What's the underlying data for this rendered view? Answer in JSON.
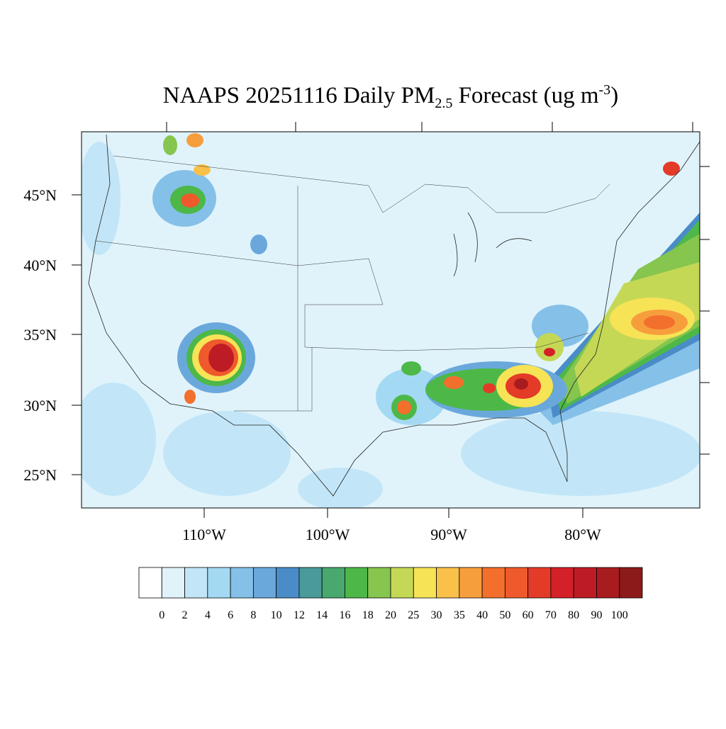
{
  "title": {
    "prefix": "NAAPS 20251116 Daily PM",
    "subscript": "2.5",
    "middle": " Forecast (ug m",
    "superscript": "-3",
    "suffix": ")"
  },
  "lat_labels": [
    "45°N",
    "40°N",
    "35°N",
    "30°N",
    "25°N"
  ],
  "lon_labels": [
    "110°W",
    "100°W",
    "90°W",
    "80°W"
  ],
  "colorbar": {
    "levels": [
      0,
      2,
      4,
      6,
      8,
      10,
      12,
      14,
      16,
      18,
      20,
      25,
      30,
      35,
      40,
      50,
      60,
      70,
      80,
      90,
      100
    ],
    "colors": [
      "#ffffff",
      "#e0f3fb",
      "#c2e6f7",
      "#a3d9f3",
      "#85c0e8",
      "#6aa8dc",
      "#4a8cc8",
      "#4a9a9a",
      "#48a86e",
      "#4db848",
      "#86c54e",
      "#c4d856",
      "#f7e356",
      "#f9c04a",
      "#f79e3c",
      "#f36f2c",
      "#ee5a2c",
      "#e43a28",
      "#d42028",
      "#be1c24",
      "#a81c20",
      "#8c1a1a"
    ]
  }
}
